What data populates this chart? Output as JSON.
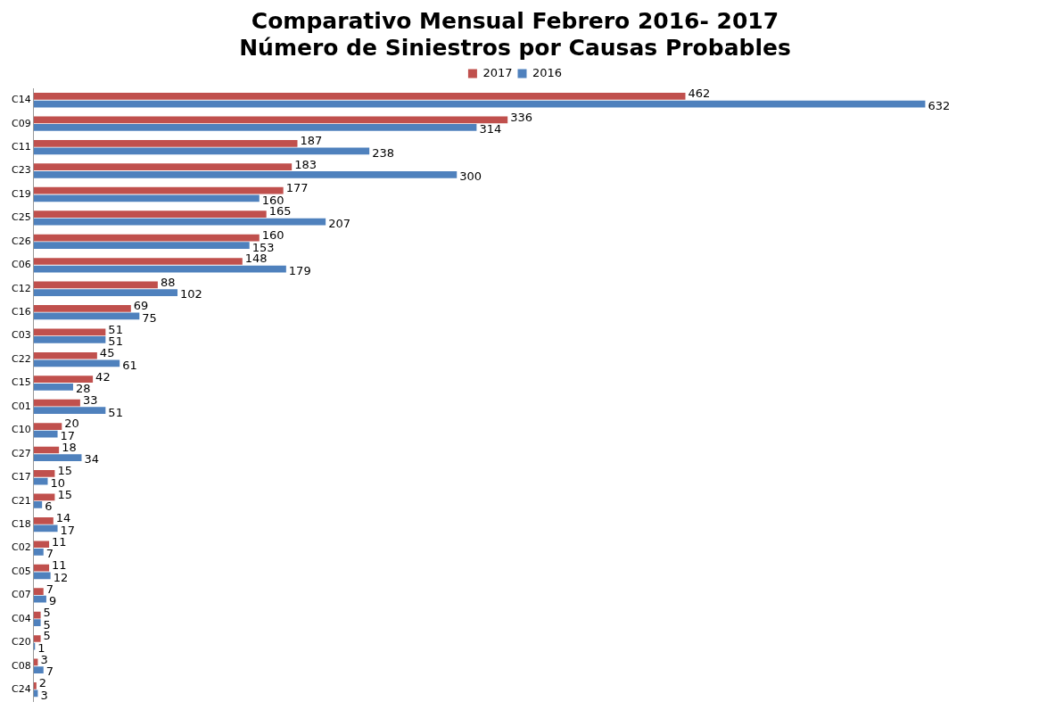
{
  "chart_data": {
    "type": "bar",
    "orientation": "horizontal",
    "title": [
      "Comparativo Mensual Febrero 2016- 2017",
      "Número de Siniestros por Causas Probables"
    ],
    "categories": [
      "C14",
      "C09",
      "C11",
      "C23",
      "C19",
      "C25",
      "C26",
      "C06",
      "C12",
      "C16",
      "C03",
      "C22",
      "C15",
      "C01",
      "C10",
      "C27",
      "C17",
      "C21",
      "C18",
      "C02",
      "C05",
      "C07",
      "C04",
      "C20",
      "C08",
      "C24"
    ],
    "series": [
      {
        "name": "2017",
        "color": "#c0504d",
        "values": [
          462,
          336,
          187,
          183,
          177,
          165,
          160,
          148,
          88,
          69,
          51,
          45,
          42,
          33,
          20,
          18,
          15,
          15,
          14,
          11,
          11,
          7,
          5,
          5,
          3,
          2
        ]
      },
      {
        "name": "2016",
        "color": "#4f81bd",
        "values": [
          632,
          314,
          238,
          300,
          160,
          207,
          153,
          179,
          102,
          75,
          51,
          61,
          28,
          51,
          17,
          34,
          10,
          6,
          17,
          7,
          12,
          9,
          5,
          1,
          7,
          3
        ]
      }
    ],
    "data_labels": true,
    "legend": "top",
    "tick_labels": "y"
  }
}
